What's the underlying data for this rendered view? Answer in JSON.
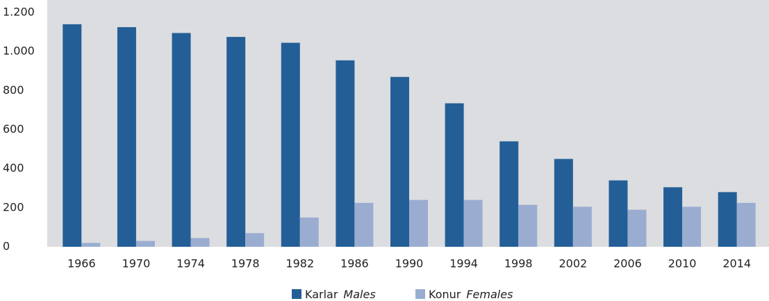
{
  "chart_data": {
    "type": "bar",
    "categories": [
      "1966",
      "1970",
      "1974",
      "1978",
      "1982",
      "1986",
      "1990",
      "1994",
      "1998",
      "2002",
      "2006",
      "2010",
      "2014"
    ],
    "series": [
      {
        "name": "Karlar",
        "name_italic": "Males",
        "color": "#235f96",
        "values": [
          1140,
          1125,
          1095,
          1075,
          1045,
          955,
          870,
          735,
          540,
          450,
          340,
          305,
          280
        ]
      },
      {
        "name": "Konur",
        "name_italic": "Females",
        "color": "#9aadd1",
        "values": [
          20,
          30,
          45,
          70,
          150,
          225,
          240,
          240,
          215,
          205,
          190,
          205,
          225
        ]
      }
    ],
    "ylim": [
      0,
      1200
    ],
    "yticks": [
      0,
      200,
      400,
      600,
      800,
      {
        "value": 1000,
        "label": "1.000"
      },
      {
        "value": 1200,
        "label": "1.200"
      }
    ],
    "grid": false,
    "legend": "bottom"
  }
}
